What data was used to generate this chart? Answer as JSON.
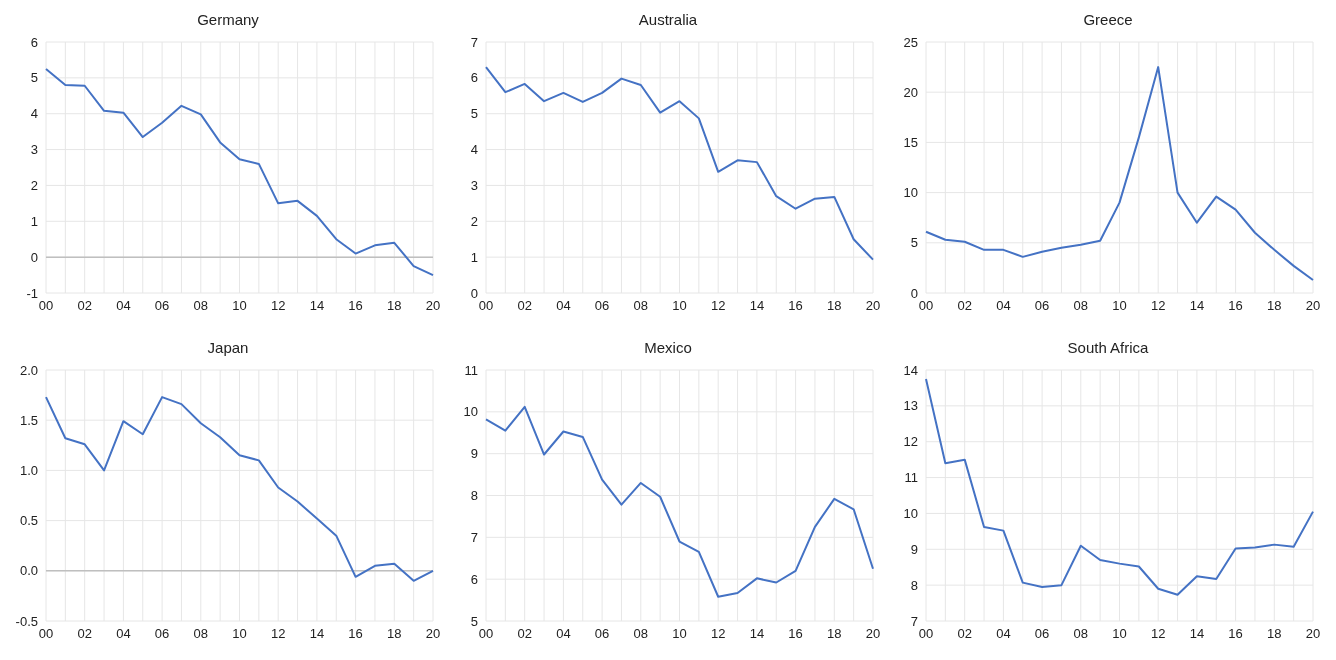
{
  "chart_data": [
    {
      "type": "line",
      "title": "Germany",
      "categories": [
        "00",
        null,
        "02",
        null,
        "04",
        null,
        "06",
        null,
        "08",
        null,
        "10",
        null,
        "12",
        null,
        "14",
        null,
        "16",
        null,
        "18",
        null,
        "20"
      ],
      "series": [
        {
          "color": "#4472c4",
          "values": [
            5.25,
            4.8,
            4.78,
            4.08,
            4.03,
            3.35,
            3.75,
            4.22,
            3.98,
            3.2,
            2.73,
            2.6,
            1.5,
            1.57,
            1.15,
            0.5,
            0.1,
            0.33,
            0.4,
            -0.25,
            -0.5
          ]
        }
      ],
      "ylim": [
        -1,
        6
      ],
      "yticks": [
        -1,
        0,
        1,
        2,
        3,
        4,
        5,
        6
      ],
      "grid": true,
      "ref_lines": [
        {
          "axis": "y",
          "value": 0,
          "color": "#bfbfbf"
        }
      ]
    },
    {
      "type": "line",
      "title": "Australia",
      "categories": [
        "00",
        null,
        "02",
        null,
        "04",
        null,
        "06",
        null,
        "08",
        null,
        "10",
        null,
        "12",
        null,
        "14",
        null,
        "16",
        null,
        "18",
        null,
        "20"
      ],
      "series": [
        {
          "color": "#4472c4",
          "values": [
            6.3,
            5.6,
            5.83,
            5.35,
            5.58,
            5.33,
            5.58,
            5.98,
            5.8,
            5.03,
            5.35,
            4.87,
            3.38,
            3.7,
            3.65,
            2.7,
            2.35,
            2.63,
            2.68,
            1.5,
            0.93
          ]
        }
      ],
      "ylim": [
        0,
        7
      ],
      "yticks": [
        0,
        1,
        2,
        3,
        4,
        5,
        6,
        7
      ],
      "grid": true
    },
    {
      "type": "line",
      "title": "Greece",
      "categories": [
        "00",
        null,
        "02",
        null,
        "04",
        null,
        "06",
        null,
        "08",
        null,
        "10",
        null,
        "12",
        null,
        "14",
        null,
        "16",
        null,
        "18",
        null,
        "20"
      ],
      "series": [
        {
          "color": "#4472c4",
          "values": [
            6.1,
            5.3,
            5.1,
            4.3,
            4.3,
            3.6,
            4.1,
            4.5,
            4.8,
            5.2,
            9.0,
            15.5,
            22.5,
            10.0,
            7.0,
            9.6,
            8.3,
            6.0,
            4.3,
            2.7,
            1.3
          ]
        }
      ],
      "ylim": [
        0,
        25
      ],
      "yticks": [
        0,
        5,
        10,
        15,
        20,
        25
      ],
      "grid": true
    },
    {
      "type": "line",
      "title": "Japan",
      "categories": [
        "00",
        null,
        "02",
        null,
        "04",
        null,
        "06",
        null,
        "08",
        null,
        "10",
        null,
        "12",
        null,
        "14",
        null,
        "16",
        null,
        "18",
        null,
        "20"
      ],
      "series": [
        {
          "color": "#4472c4",
          "values": [
            1.73,
            1.32,
            1.26,
            1.0,
            1.49,
            1.36,
            1.73,
            1.66,
            1.47,
            1.33,
            1.15,
            1.1,
            0.83,
            0.69,
            0.52,
            0.35,
            -0.06,
            0.05,
            0.07,
            -0.1,
            0.0
          ]
        }
      ],
      "ylim": [
        -0.5,
        2
      ],
      "yticks": [
        -0.5,
        {
          "value": 0,
          "label": "0.0"
        },
        0.5,
        {
          "value": 1,
          "label": "1.0"
        },
        1.5,
        {
          "value": 2,
          "label": "2.0"
        }
      ],
      "grid": true,
      "ref_lines": [
        {
          "axis": "y",
          "value": 0,
          "color": "#bfbfbf"
        }
      ]
    },
    {
      "type": "line",
      "title": "Mexico",
      "categories": [
        "00",
        null,
        "02",
        null,
        "04",
        null,
        "06",
        null,
        "08",
        null,
        "10",
        null,
        "12",
        null,
        "14",
        null,
        "16",
        null,
        "18",
        null,
        "20"
      ],
      "series": [
        {
          "color": "#4472c4",
          "values": [
            9.82,
            9.55,
            10.12,
            8.98,
            9.53,
            9.4,
            8.38,
            7.78,
            8.3,
            7.97,
            6.9,
            6.65,
            5.58,
            5.67,
            6.02,
            5.92,
            6.2,
            7.25,
            7.92,
            7.67,
            6.25
          ]
        }
      ],
      "ylim": [
        5,
        11
      ],
      "yticks": [
        5,
        6,
        7,
        8,
        9,
        10,
        11
      ],
      "grid": true
    },
    {
      "type": "line",
      "title": "South Africa",
      "categories": [
        "00",
        null,
        "02",
        null,
        "04",
        null,
        "06",
        null,
        "08",
        null,
        "10",
        null,
        "12",
        null,
        "14",
        null,
        "16",
        null,
        "18",
        null,
        "20"
      ],
      "series": [
        {
          "color": "#4472c4",
          "values": [
            13.75,
            11.4,
            11.5,
            9.62,
            9.52,
            8.07,
            7.95,
            8.0,
            9.1,
            8.7,
            8.6,
            8.52,
            7.9,
            7.73,
            8.25,
            8.17,
            9.02,
            9.05,
            9.13,
            9.07,
            10.05
          ]
        }
      ],
      "ylim": [
        7,
        14
      ],
      "yticks": [
        7,
        8,
        9,
        10,
        11,
        12,
        13,
        14
      ],
      "grid": true
    }
  ]
}
